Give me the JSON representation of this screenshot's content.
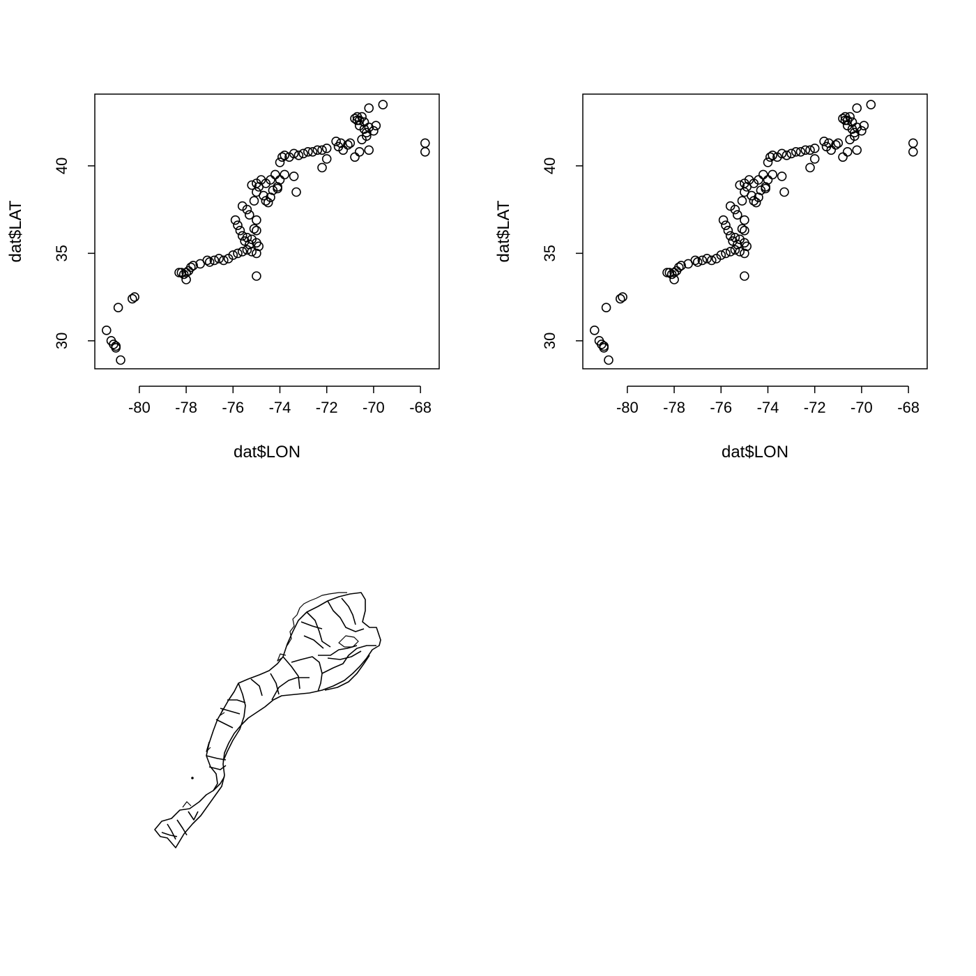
{
  "chart_data": [
    {
      "type": "scatter",
      "title": "",
      "xlabel": "dat$LON",
      "ylabel": "dat$LAT",
      "xlim": [
        -81.9,
        -67.2
      ],
      "ylim": [
        28.4,
        44.1
      ],
      "xticks": [
        -80,
        -78,
        -76,
        -74,
        -72,
        -70,
        -68
      ],
      "yticks": [
        30,
        35,
        40
      ],
      "xtick_labels": [
        "-80",
        "-78",
        "-76",
        "-74",
        "-72",
        "-70",
        "-68"
      ],
      "ytick_labels": [
        "30",
        "35",
        "40"
      ],
      "grid": false,
      "marker": "open-circle",
      "x": [
        -81.4,
        -81.2,
        -81.1,
        -81.0,
        -81.0,
        -80.8,
        -80.9,
        -80.3,
        -80.2,
        -78.3,
        -78.2,
        -78.1,
        -78.0,
        -78.0,
        -77.9,
        -77.8,
        -77.7,
        -77.4,
        -77.1,
        -77.0,
        -76.8,
        -76.6,
        -76.4,
        -76.2,
        -76.0,
        -75.8,
        -75.6,
        -75.4,
        -75.2,
        -75.0,
        -75.0,
        -75.9,
        -75.8,
        -75.7,
        -75.6,
        -75.5,
        -75.4,
        -75.3,
        -75.2,
        -75.1,
        -75.0,
        -75.6,
        -75.4,
        -75.3,
        -75.1,
        -75.0,
        -74.9,
        -74.7,
        -74.5,
        -74.3,
        -74.1,
        -74.0,
        -75.2,
        -75.0,
        -74.8,
        -74.6,
        -74.4,
        -74.2,
        -74.0,
        -73.9,
        -73.8,
        -73.6,
        -73.4,
        -73.2,
        -73.0,
        -72.8,
        -72.6,
        -72.4,
        -72.2,
        -72.0,
        -75.0,
        -74.6,
        -74.4,
        -74.1,
        -73.8,
        -73.4,
        -73.3,
        -75.0,
        -74.9,
        -72.2,
        -72.0,
        -71.6,
        -71.5,
        -71.3,
        -71.1,
        -71.0,
        -70.8,
        -70.6,
        -70.2,
        -71.4,
        -70.8,
        -70.7,
        -70.6,
        -70.5,
        -70.4,
        -70.3,
        -70.5,
        -70.4,
        -70.2,
        -70.0,
        -69.9,
        -70.3,
        -69.6,
        -70.2,
        -70.6,
        -70.7,
        -67.8,
        -67.8
      ],
      "y": [
        30.6,
        30.0,
        29.8,
        29.6,
        29.7,
        28.9,
        31.9,
        32.4,
        32.5,
        33.9,
        33.9,
        33.8,
        33.5,
        33.9,
        34.0,
        34.2,
        34.3,
        34.4,
        34.6,
        34.5,
        34.6,
        34.7,
        34.6,
        34.7,
        34.9,
        35.0,
        35.1,
        35.2,
        35.1,
        35.0,
        33.7,
        36.9,
        36.6,
        36.3,
        36.0,
        35.7,
        35.9,
        35.5,
        35.8,
        36.4,
        36.9,
        37.7,
        37.5,
        37.2,
        38.0,
        38.5,
        38.8,
        38.3,
        37.9,
        38.6,
        38.8,
        39.2,
        38.9,
        39.0,
        39.2,
        39.0,
        39.2,
        39.5,
        40.2,
        40.5,
        40.6,
        40.5,
        40.7,
        40.6,
        40.7,
        40.8,
        40.8,
        40.9,
        40.9,
        41.0,
        35.6,
        38.0,
        38.2,
        38.7,
        39.5,
        39.4,
        38.5,
        36.3,
        35.4,
        39.9,
        40.4,
        41.4,
        41.1,
        40.9,
        41.2,
        41.3,
        40.5,
        40.8,
        40.9,
        41.3,
        42.7,
        42.6,
        42.3,
        42.8,
        42.1,
        41.9,
        41.5,
        42.5,
        42.2,
        42.0,
        42.3,
        41.7,
        43.5,
        43.3,
        42.6,
        42.8,
        41.3,
        40.8
      ]
    },
    {
      "type": "scatter",
      "title": "",
      "xlabel": "dat$LON",
      "ylabel": "dat$LAT",
      "xlim": [
        -81.9,
        -67.2
      ],
      "ylim": [
        28.4,
        44.1
      ],
      "xticks": [
        -80,
        -78,
        -76,
        -74,
        -72,
        -70,
        -68
      ],
      "yticks": [
        30,
        35,
        40
      ],
      "xtick_labels": [
        "-80",
        "-78",
        "-76",
        "-74",
        "-72",
        "-70",
        "-68"
      ],
      "ytick_labels": [
        "30",
        "35",
        "40"
      ],
      "grid": false,
      "marker": "open-circle",
      "x": [
        -81.4,
        -81.2,
        -81.1,
        -81.0,
        -81.0,
        -80.8,
        -80.9,
        -80.3,
        -80.2,
        -78.3,
        -78.2,
        -78.1,
        -78.0,
        -78.0,
        -77.9,
        -77.8,
        -77.7,
        -77.4,
        -77.1,
        -77.0,
        -76.8,
        -76.6,
        -76.4,
        -76.2,
        -76.0,
        -75.8,
        -75.6,
        -75.4,
        -75.2,
        -75.0,
        -75.0,
        -75.9,
        -75.8,
        -75.7,
        -75.6,
        -75.5,
        -75.4,
        -75.3,
        -75.2,
        -75.1,
        -75.0,
        -75.6,
        -75.4,
        -75.3,
        -75.1,
        -75.0,
        -74.9,
        -74.7,
        -74.5,
        -74.3,
        -74.1,
        -74.0,
        -75.2,
        -75.0,
        -74.8,
        -74.6,
        -74.4,
        -74.2,
        -74.0,
        -73.9,
        -73.8,
        -73.6,
        -73.4,
        -73.2,
        -73.0,
        -72.8,
        -72.6,
        -72.4,
        -72.2,
        -72.0,
        -75.0,
        -74.6,
        -74.4,
        -74.1,
        -73.8,
        -73.4,
        -73.3,
        -75.0,
        -74.9,
        -72.2,
        -72.0,
        -71.6,
        -71.5,
        -71.3,
        -71.1,
        -71.0,
        -70.8,
        -70.6,
        -70.2,
        -71.4,
        -70.8,
        -70.7,
        -70.6,
        -70.5,
        -70.4,
        -70.3,
        -70.5,
        -70.4,
        -70.2,
        -70.0,
        -69.9,
        -70.3,
        -69.6,
        -70.2,
        -70.6,
        -70.7,
        -67.8,
        -67.8
      ],
      "y": [
        30.6,
        30.0,
        29.8,
        29.6,
        29.7,
        28.9,
        31.9,
        32.4,
        32.5,
        33.9,
        33.9,
        33.8,
        33.5,
        33.9,
        34.0,
        34.2,
        34.3,
        34.4,
        34.6,
        34.5,
        34.6,
        34.7,
        34.6,
        34.7,
        34.9,
        35.0,
        35.1,
        35.2,
        35.1,
        35.0,
        33.7,
        36.9,
        36.6,
        36.3,
        36.0,
        35.7,
        35.9,
        35.5,
        35.8,
        36.4,
        36.9,
        37.7,
        37.5,
        37.2,
        38.0,
        38.5,
        38.8,
        38.3,
        37.9,
        38.6,
        38.8,
        39.2,
        38.9,
        39.0,
        39.2,
        39.0,
        39.2,
        39.5,
        40.2,
        40.5,
        40.6,
        40.5,
        40.7,
        40.6,
        40.7,
        40.8,
        40.8,
        40.9,
        40.9,
        41.0,
        35.6,
        38.0,
        38.2,
        38.7,
        39.5,
        39.4,
        38.5,
        36.3,
        35.4,
        39.9,
        40.4,
        41.4,
        41.1,
        40.9,
        41.2,
        41.3,
        40.5,
        40.8,
        40.9,
        41.3,
        42.7,
        42.6,
        42.3,
        42.8,
        42.1,
        41.9,
        41.5,
        42.5,
        42.2,
        42.0,
        42.3,
        41.7,
        43.5,
        43.3,
        42.6,
        42.8,
        41.3,
        40.8
      ]
    }
  ],
  "map": {
    "type": "polygon-outline-map",
    "stroke": "#000000"
  }
}
